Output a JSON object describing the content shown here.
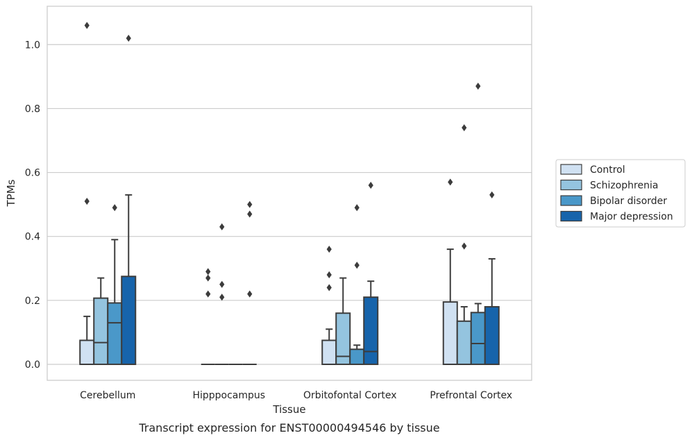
{
  "chart_data": {
    "type": "box",
    "xlabel": "Tissue",
    "ylabel": "TPMs",
    "caption": "Transcript expression for ENST00000494546 by tissue",
    "ylim": [
      -0.05,
      1.12
    ],
    "yticks": [
      0.0,
      0.2,
      0.4,
      0.6,
      0.8,
      1.0
    ],
    "ytick_labels": [
      "0.0",
      "0.2",
      "0.4",
      "0.6",
      "0.8",
      "1.0"
    ],
    "grid": "horizontal",
    "legend_position": "right",
    "categories": [
      "Cerebellum",
      "Hipppocampus",
      "Orbitofontal Cortex",
      "Prefrontal Cortex"
    ],
    "series": [
      {
        "name": "Control",
        "color": "#d0e1f2",
        "boxes": [
          {
            "q1": 0.0,
            "median": 0.0,
            "q3": 0.075,
            "whisker_low": 0.0,
            "whisker_high": 0.15,
            "outliers": [
              0.51,
              1.06
            ]
          },
          {
            "q1": 0.0,
            "median": 0.0,
            "q3": 0.0,
            "whisker_low": 0.0,
            "whisker_high": 0.0,
            "outliers": [
              0.22,
              0.27,
              0.29
            ]
          },
          {
            "q1": 0.0,
            "median": 0.0,
            "q3": 0.075,
            "whisker_low": 0.0,
            "whisker_high": 0.11,
            "outliers": [
              0.24,
              0.28,
              0.36
            ]
          },
          {
            "q1": 0.0,
            "median": 0.0,
            "q3": 0.195,
            "whisker_low": 0.0,
            "whisker_high": 0.36,
            "outliers": [
              0.57
            ]
          }
        ]
      },
      {
        "name": "Schizophrenia",
        "color": "#94c4df",
        "boxes": [
          {
            "q1": 0.0,
            "median": 0.068,
            "q3": 0.207,
            "whisker_low": 0.0,
            "whisker_high": 0.27,
            "outliers": []
          },
          {
            "q1": 0.0,
            "median": 0.0,
            "q3": 0.0,
            "whisker_low": 0.0,
            "whisker_high": 0.0,
            "outliers": [
              0.21,
              0.25,
              0.43
            ]
          },
          {
            "q1": 0.0,
            "median": 0.025,
            "q3": 0.16,
            "whisker_low": 0.0,
            "whisker_high": 0.27,
            "outliers": []
          },
          {
            "q1": 0.0,
            "median": 0.0,
            "q3": 0.135,
            "whisker_low": 0.0,
            "whisker_high": 0.18,
            "outliers": [
              0.37,
              0.74
            ]
          }
        ]
      },
      {
        "name": "Bipolar disorder",
        "color": "#4a98c9",
        "boxes": [
          {
            "q1": 0.0,
            "median": 0.13,
            "q3": 0.192,
            "whisker_low": 0.0,
            "whisker_high": 0.39,
            "outliers": [
              0.49
            ]
          },
          {
            "q1": 0.0,
            "median": 0.0,
            "q3": 0.0,
            "whisker_low": 0.0,
            "whisker_high": 0.0,
            "outliers": []
          },
          {
            "q1": 0.0,
            "median": 0.0,
            "q3": 0.047,
            "whisker_low": 0.0,
            "whisker_high": 0.06,
            "outliers": [
              0.31,
              0.49
            ]
          },
          {
            "q1": 0.0,
            "median": 0.065,
            "q3": 0.162,
            "whisker_low": 0.0,
            "whisker_high": 0.19,
            "outliers": [
              0.87
            ]
          }
        ]
      },
      {
        "name": "Major depression",
        "color": "#1764ab",
        "boxes": [
          {
            "q1": 0.0,
            "median": 0.0,
            "q3": 0.275,
            "whisker_low": 0.0,
            "whisker_high": 0.53,
            "outliers": [
              1.02
            ]
          },
          {
            "q1": 0.0,
            "median": 0.0,
            "q3": 0.0,
            "whisker_low": 0.0,
            "whisker_high": 0.0,
            "outliers": [
              0.22,
              0.47,
              0.5
            ]
          },
          {
            "q1": 0.0,
            "median": 0.04,
            "q3": 0.21,
            "whisker_low": 0.0,
            "whisker_high": 0.26,
            "outliers": [
              0.56
            ]
          },
          {
            "q1": 0.0,
            "median": 0.0,
            "q3": 0.18,
            "whisker_low": 0.0,
            "whisker_high": 0.33,
            "outliers": [
              0.53
            ]
          }
        ]
      }
    ]
  }
}
